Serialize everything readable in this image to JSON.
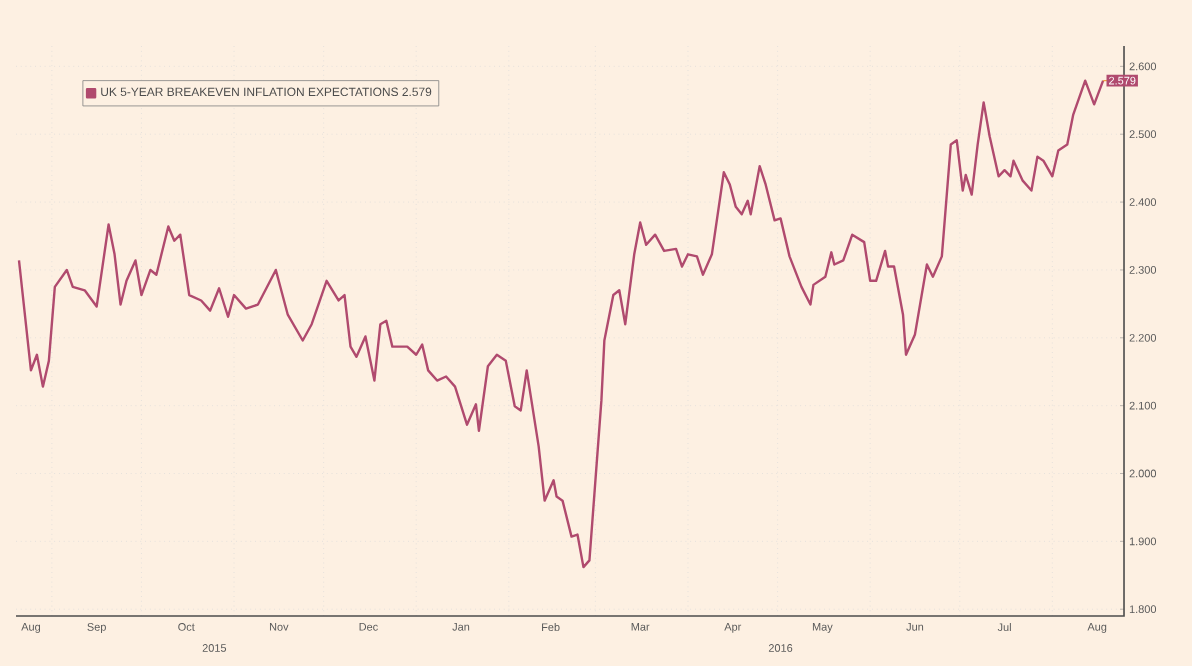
{
  "chart_data": {
    "type": "line",
    "grid": true,
    "legend": "top left",
    "marker": "none",
    "line_style": "solid",
    "xlim": [
      "2015-08-20",
      "2016-08-25"
    ],
    "xticks": [
      {
        "value": "2015-08-25",
        "label": "Aug"
      },
      {
        "value": "2015-09-16",
        "label": "Sep"
      },
      {
        "value": "2015-10-16",
        "label": "Oct"
      },
      {
        "value": "2015-11-16",
        "label": "Nov"
      },
      {
        "value": "2015-12-16",
        "label": "Dec"
      },
      {
        "value": "2016-01-16",
        "label": "Jan"
      },
      {
        "value": "2016-02-15",
        "label": "Feb"
      },
      {
        "value": "2016-03-16",
        "label": "Mar"
      },
      {
        "value": "2016-04-16",
        "label": "Apr"
      },
      {
        "value": "2016-05-16",
        "label": "May"
      },
      {
        "value": "2016-06-16",
        "label": "Jun"
      },
      {
        "value": "2016-07-16",
        "label": "Jul"
      },
      {
        "value": "2016-08-16",
        "label": "Aug"
      },
      {
        "value": "2015-09-01",
        "label": null
      },
      {
        "value": "2015-10-01",
        "label": null
      },
      {
        "value": "2015-11-01",
        "label": null
      },
      {
        "value": "2015-12-01",
        "label": null
      },
      {
        "value": "2016-01-01",
        "label": null
      },
      {
        "value": "2016-02-01",
        "label": null
      },
      {
        "value": "2016-03-01",
        "label": null
      },
      {
        "value": "2016-04-01",
        "label": null
      },
      {
        "value": "2016-05-01",
        "label": null
      },
      {
        "value": "2016-06-01",
        "label": null
      },
      {
        "value": "2016-07-01",
        "label": null
      },
      {
        "value": "2016-08-01",
        "label": null
      }
    ],
    "ylim": [
      1.79,
      2.63
    ],
    "yticks": [
      {
        "value": 1.8,
        "label": "1.800"
      },
      {
        "value": 1.9,
        "label": "1.900"
      },
      {
        "value": 2.0,
        "label": "2.000"
      },
      {
        "value": 2.1,
        "label": "2.100"
      },
      {
        "value": 2.2,
        "label": "2.200"
      },
      {
        "value": 2.3,
        "label": "2.300"
      },
      {
        "value": 2.4,
        "label": "2.400"
      },
      {
        "value": 2.5,
        "label": "2.500"
      },
      {
        "value": 2.6,
        "label": "2.600"
      }
    ],
    "annotations": [
      "2015",
      "2016"
    ],
    "series": [
      {
        "name": "UK 5-YEAR BREAKEVEN INFLATION EXPECTATIONS 2.579",
        "color": "#b04a6e",
        "x": [
          "2015-08-21",
          "2015-08-25",
          "2015-08-27",
          "2015-08-29",
          "2015-08-31",
          "2015-09-02",
          "2015-09-06",
          "2015-09-08",
          "2015-09-12",
          "2015-09-16",
          "2015-09-20",
          "2015-09-22",
          "2015-09-24",
          "2015-09-26",
          "2015-09-29",
          "2015-10-01",
          "2015-10-04",
          "2015-10-06",
          "2015-10-10",
          "2015-10-12",
          "2015-10-14",
          "2015-10-17",
          "2015-10-21",
          "2015-10-24",
          "2015-10-27",
          "2015-10-30",
          "2015-11-01",
          "2015-11-05",
          "2015-11-09",
          "2015-11-15",
          "2015-11-19",
          "2015-11-24",
          "2015-11-27",
          "2015-12-02",
          "2015-12-06",
          "2015-12-08",
          "2015-12-10",
          "2015-12-12",
          "2015-12-15",
          "2015-12-18",
          "2015-12-20",
          "2015-12-22",
          "2015-12-24",
          "2015-12-29",
          "2016-01-01",
          "2016-01-03",
          "2016-01-05",
          "2016-01-08",
          "2016-01-11",
          "2016-01-14",
          "2016-01-18",
          "2016-01-21",
          "2016-01-22",
          "2016-01-25",
          "2016-01-28",
          "2016-01-31",
          "2016-02-03",
          "2016-02-05",
          "2016-02-07",
          "2016-02-11",
          "2016-02-13",
          "2016-02-16",
          "2016-02-17",
          "2016-02-19",
          "2016-02-22",
          "2016-02-24",
          "2016-02-26",
          "2016-02-28",
          "2016-03-03",
          "2016-03-04",
          "2016-03-07",
          "2016-03-09",
          "2016-03-11",
          "2016-03-14",
          "2016-03-16",
          "2016-03-18",
          "2016-03-21",
          "2016-03-24",
          "2016-03-28",
          "2016-03-30",
          "2016-04-01",
          "2016-04-04",
          "2016-04-06",
          "2016-04-09",
          "2016-04-13",
          "2016-04-15",
          "2016-04-17",
          "2016-04-19",
          "2016-04-21",
          "2016-04-22",
          "2016-04-25",
          "2016-04-27",
          "2016-04-30",
          "2016-05-02",
          "2016-05-05",
          "2016-05-09",
          "2016-05-12",
          "2016-05-13",
          "2016-05-17",
          "2016-05-19",
          "2016-05-20",
          "2016-05-23",
          "2016-05-26",
          "2016-05-30",
          "2016-06-01",
          "2016-06-03",
          "2016-06-06",
          "2016-06-07",
          "2016-06-09",
          "2016-06-12",
          "2016-06-13",
          "2016-06-16",
          "2016-06-20",
          "2016-06-22",
          "2016-06-25",
          "2016-06-28",
          "2016-06-30",
          "2016-07-02",
          "2016-07-03",
          "2016-07-05",
          "2016-07-07",
          "2016-07-09",
          "2016-07-11",
          "2016-07-14",
          "2016-07-16",
          "2016-07-18",
          "2016-07-19",
          "2016-07-22",
          "2016-07-25",
          "2016-07-27",
          "2016-07-29",
          "2016-08-01",
          "2016-08-03",
          "2016-08-06",
          "2016-08-08",
          "2016-08-12",
          "2016-08-15",
          "2016-08-18"
        ],
        "values": [
          2.314,
          2.152,
          2.175,
          2.128,
          2.166,
          2.275,
          2.3,
          2.275,
          2.27,
          2.246,
          2.367,
          2.323,
          2.249,
          2.284,
          2.314,
          2.263,
          2.3,
          2.293,
          2.364,
          2.343,
          2.352,
          2.263,
          2.255,
          2.24,
          2.273,
          2.231,
          2.263,
          2.243,
          2.249,
          2.3,
          2.234,
          2.196,
          2.22,
          2.284,
          2.255,
          2.263,
          2.187,
          2.172,
          2.202,
          2.137,
          2.22,
          2.225,
          2.187,
          2.187,
          2.175,
          2.19,
          2.152,
          2.137,
          2.143,
          2.128,
          2.072,
          2.102,
          2.063,
          2.158,
          2.175,
          2.166,
          2.099,
          2.093,
          2.152,
          2.04,
          1.96,
          1.99,
          1.966,
          1.96,
          1.907,
          1.91,
          1.862,
          1.872,
          2.107,
          2.196,
          2.263,
          2.27,
          2.22,
          2.323,
          2.37,
          2.337,
          2.352,
          2.328,
          2.331,
          2.305,
          2.323,
          2.32,
          2.293,
          2.323,
          2.444,
          2.426,
          2.393,
          2.382,
          2.402,
          2.382,
          2.453,
          2.426,
          2.373,
          2.376,
          2.32,
          2.275,
          2.249,
          2.278,
          2.29,
          2.326,
          2.308,
          2.314,
          2.352,
          2.341,
          2.284,
          2.284,
          2.328,
          2.305,
          2.305,
          2.234,
          2.175,
          2.205,
          2.308,
          2.29,
          2.32,
          2.485,
          2.491,
          2.417,
          2.44,
          2.411,
          2.485,
          2.547,
          2.497,
          2.438,
          2.447,
          2.438,
          2.461,
          2.432,
          2.417,
          2.467,
          2.461,
          2.438,
          2.476,
          2.485,
          2.529,
          2.579,
          2.544,
          2.579
        ],
        "value_labels": [
          null,
          null,
          null,
          null,
          null,
          null,
          null,
          null,
          null,
          null,
          null,
          null,
          null,
          null,
          null,
          null,
          null,
          null,
          null,
          null,
          null,
          null,
          null,
          null,
          null,
          null,
          null,
          null,
          null,
          null,
          null,
          null,
          null,
          null,
          null,
          null,
          null,
          null,
          null,
          null,
          null,
          null,
          null,
          null,
          null,
          null,
          null,
          null,
          null,
          null,
          null,
          null,
          null,
          null,
          null,
          null,
          null,
          null,
          null,
          null,
          null,
          null,
          null,
          null,
          null,
          null,
          null,
          null,
          null,
          null,
          null,
          null,
          null,
          null,
          null,
          null,
          null,
          null,
          null,
          null,
          null,
          null,
          null,
          null,
          null,
          null,
          null,
          null,
          null,
          null,
          null,
          null,
          null,
          null,
          null,
          null,
          null,
          null,
          null,
          null,
          null,
          null,
          null,
          null,
          null,
          null,
          null,
          null,
          null,
          null,
          null,
          null,
          null,
          null,
          null,
          null,
          null,
          null,
          null,
          null,
          null,
          null,
          null,
          null,
          null,
          null,
          null,
          null,
          null,
          null,
          null,
          null,
          null,
          null,
          null,
          null,
          null,
          "2.579"
        ]
      }
    ]
  }
}
